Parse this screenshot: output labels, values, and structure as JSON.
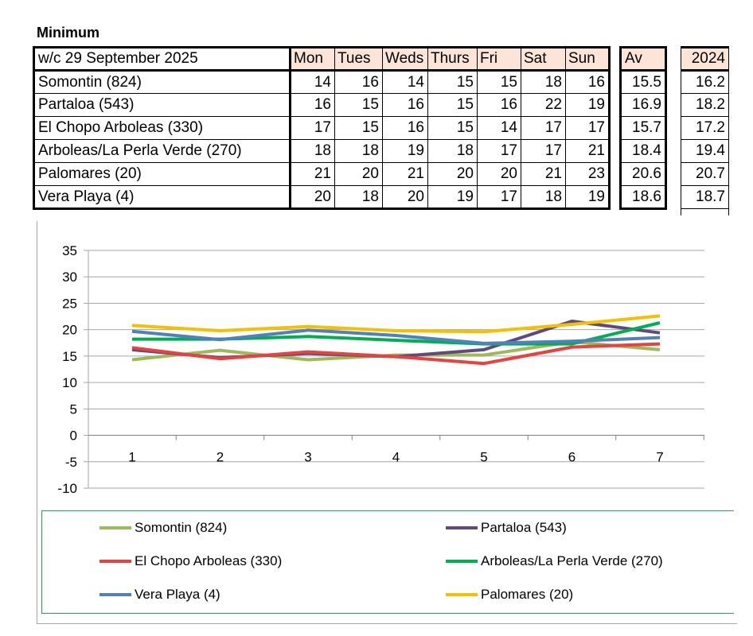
{
  "sheet": {
    "title": "Minimum",
    "week_label": "w/c 29 September  2025",
    "days": [
      "Mon",
      "Tues",
      "Weds",
      "Thurs",
      "Fri",
      "Sat",
      "Sun"
    ],
    "avg_header": "Av",
    "prev_year_header": "2024",
    "rows": [
      {
        "name": "Somontin (824)",
        "values": [
          "14",
          "16",
          "14",
          "15",
          "15",
          "18",
          "16"
        ],
        "avg": "15.5",
        "prev": "16.2"
      },
      {
        "name": "Partaloa (543)",
        "values": [
          "16",
          "15",
          "16",
          "15",
          "16",
          "22",
          "19"
        ],
        "avg": "16.9",
        "prev": "18.2"
      },
      {
        "name": "El Chopo Arboleas (330)",
        "values": [
          "17",
          "15",
          "16",
          "15",
          "14",
          "17",
          "17"
        ],
        "avg": "15.7",
        "prev": "17.2"
      },
      {
        "name": "Arboleas/La Perla Verde (270)",
        "values": [
          "18",
          "18",
          "19",
          "18",
          "17",
          "17",
          "21"
        ],
        "avg": "18.4",
        "prev": "19.4"
      },
      {
        "name": "Palomares (20)",
        "values": [
          "21",
          "20",
          "21",
          "20",
          "20",
          "21",
          "23"
        ],
        "avg": "20.6",
        "prev": "20.7"
      },
      {
        "name": "Vera Playa (4)",
        "values": [
          "20",
          "18",
          "20",
          "19",
          "17",
          "18",
          "19"
        ],
        "avg": "18.6",
        "prev": "18.7"
      }
    ]
  },
  "chart_data": {
    "type": "line",
    "x": [
      1,
      2,
      3,
      4,
      5,
      6,
      7
    ],
    "ylim": [
      -10,
      35
    ],
    "yticks": [
      -10,
      -5,
      0,
      5,
      10,
      15,
      20,
      25,
      30,
      35
    ],
    "grid": true,
    "legend": "bottom",
    "series": [
      {
        "name": "Somontin (824)",
        "color": "#9bbb59",
        "values": [
          14.3,
          16.1,
          14.3,
          15.2,
          15.2,
          17.7,
          16.2
        ]
      },
      {
        "name": "Partaloa (543)",
        "color": "#604a7b",
        "values": [
          16.2,
          14.7,
          15.5,
          14.9,
          16.2,
          21.6,
          19.4
        ]
      },
      {
        "name": "El Chopo Arboleas (330)",
        "color": "#e94040",
        "values": [
          16.6,
          14.5,
          15.8,
          14.9,
          13.6,
          16.7,
          17.3
        ]
      },
      {
        "name": "Arboleas/La Perla Verde (270)",
        "color": "#00b050",
        "values": [
          18.2,
          18.2,
          18.7,
          18.0,
          17.3,
          17.3,
          21.3
        ]
      },
      {
        "name": "Vera Playa (4)",
        "color": "#4f81bd",
        "values": [
          19.7,
          18.1,
          19.9,
          18.9,
          17.4,
          17.8,
          18.5
        ]
      },
      {
        "name": "Palomares (20)",
        "color": "#f5c000",
        "values": [
          20.8,
          19.8,
          20.6,
          19.8,
          19.6,
          21.0,
          22.6
        ]
      }
    ]
  }
}
